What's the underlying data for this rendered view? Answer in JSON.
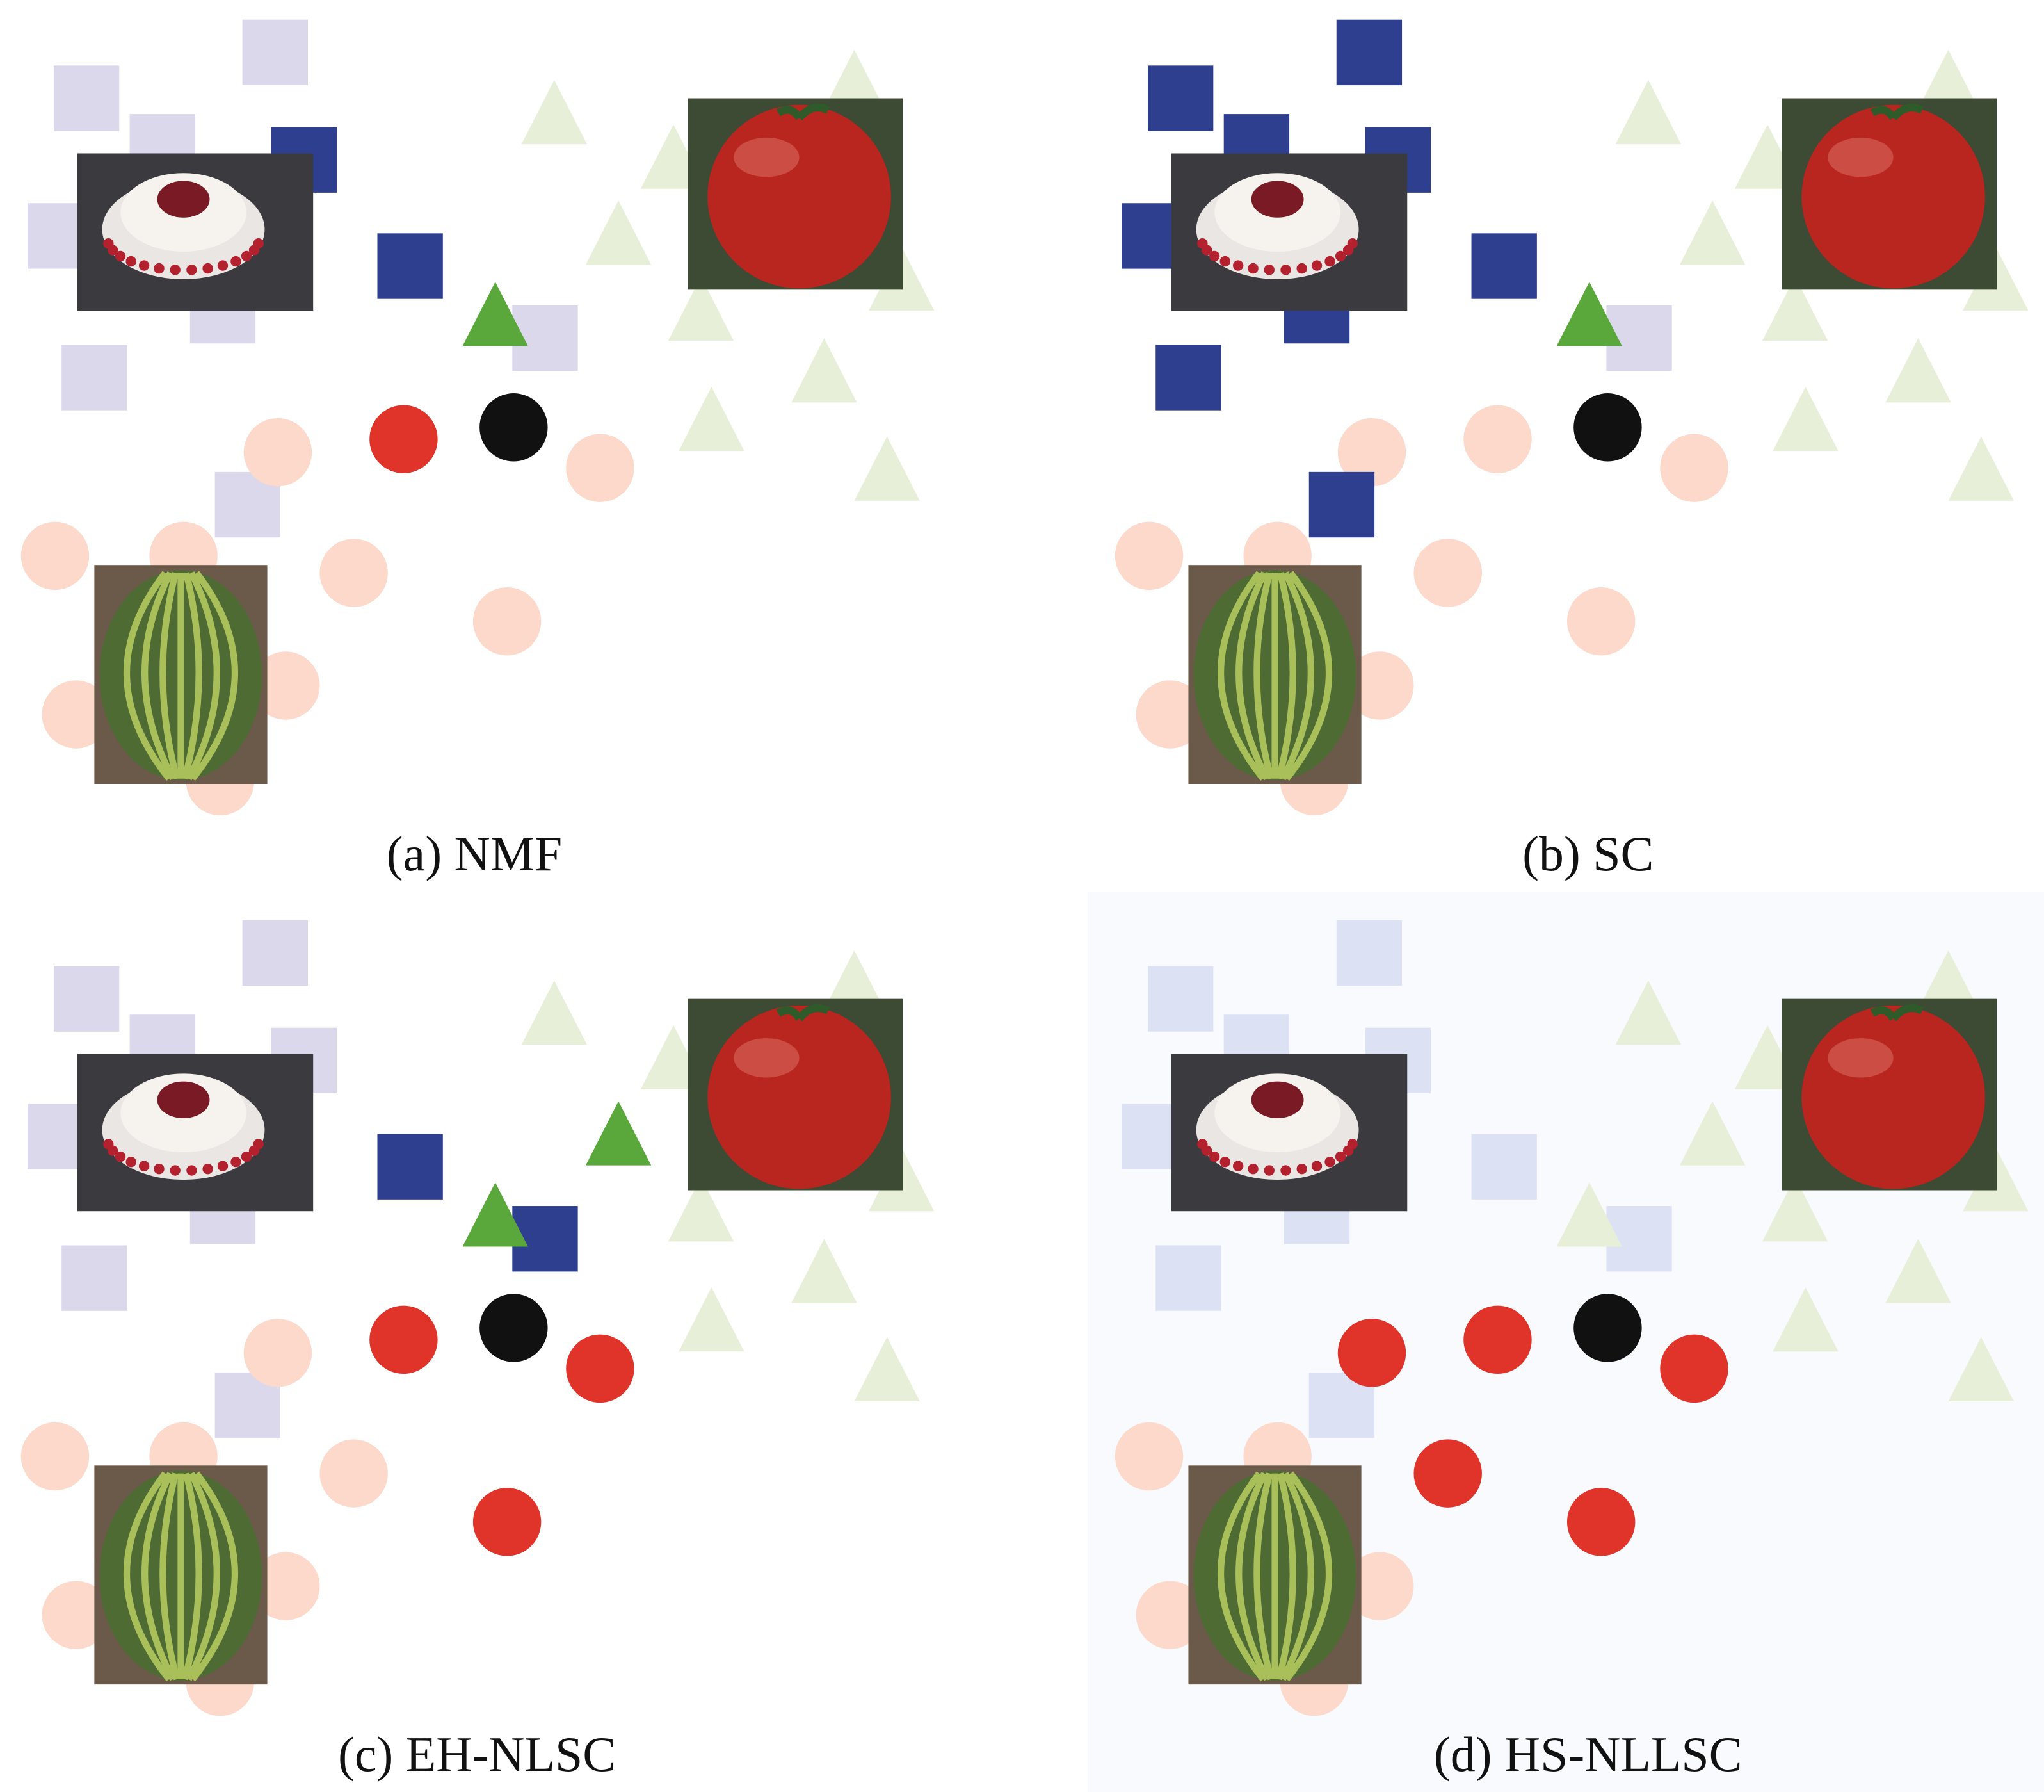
{
  "panels": [
    {
      "caption": "(a) NMF"
    },
    {
      "caption": "(b) SC"
    },
    {
      "caption": "(c) EH-NLSC"
    },
    {
      "caption": "(d) HS-NLLSC"
    }
  ]
}
